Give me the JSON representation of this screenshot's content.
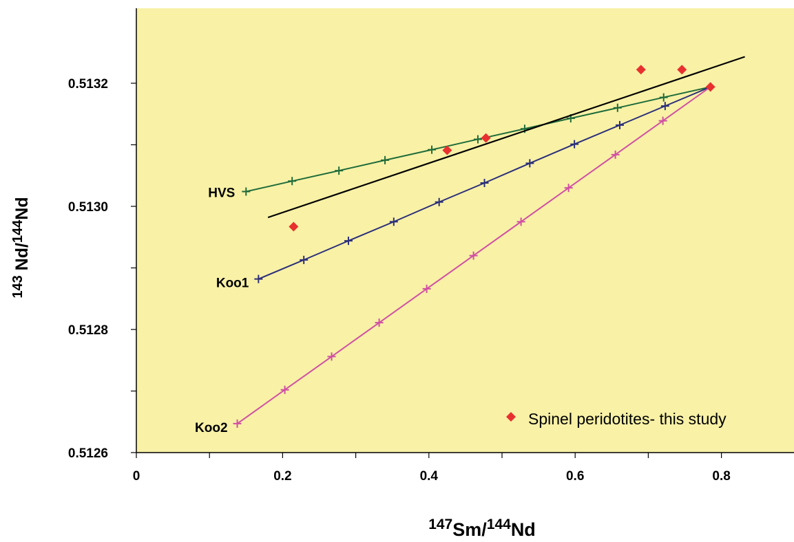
{
  "chart_data": {
    "type": "scatter",
    "xlabel": {
      "sup1": "147",
      "main1": "Sm/",
      "sup2": "144",
      "main2": "Nd"
    },
    "ylabel": {
      "sup1": "143",
      "main1": " Nd/",
      "sup2": "144",
      "main2": "Nd"
    },
    "xlim": [
      0,
      0.9
    ],
    "ylim": [
      0.5126,
      0.5133
    ],
    "x_ticks": [
      0,
      0.1,
      0.2,
      0.3,
      0.4,
      0.5,
      0.6,
      0.7,
      0.8
    ],
    "x_tick_labels": [
      "0",
      "",
      "0.2",
      "",
      "0.4",
      "",
      "0.6",
      "",
      "0.8"
    ],
    "y_ticks": [
      0.5126,
      0.5127,
      0.5128,
      0.5129,
      0.513,
      0.5131,
      0.5132
    ],
    "y_tick_labels": [
      "0.5126",
      "",
      "0.5128",
      "",
      "0.5130",
      "",
      "0.5132"
    ],
    "plot_background": "#f8f1a6",
    "legend": {
      "position": "bottom-right",
      "label": "Spinel peridotites- this study",
      "color": "#e8312f",
      "marker": "diamond"
    },
    "series": [
      {
        "name": "HVS",
        "color": "#1f6b3a",
        "marker": "plus",
        "x": [
          0.15,
          0.213,
          0.277,
          0.34,
          0.404,
          0.467,
          0.531,
          0.594,
          0.658,
          0.721,
          0.785
        ],
        "y": [
          0.513024,
          0.513041,
          0.513058,
          0.513075,
          0.513092,
          0.513109,
          0.513126,
          0.513143,
          0.51316,
          0.513177,
          0.513194
        ]
      },
      {
        "name": "Koo1",
        "color": "#2b2e7a",
        "marker": "plus",
        "x": [
          0.167,
          0.229,
          0.29,
          0.352,
          0.414,
          0.476,
          0.538,
          0.599,
          0.661,
          0.723,
          0.785
        ],
        "y": [
          0.512882,
          0.512913,
          0.512944,
          0.512975,
          0.513007,
          0.513038,
          0.51307,
          0.513101,
          0.513132,
          0.513163,
          0.513194
        ]
      },
      {
        "name": "Koo2",
        "color": "#d14fa4",
        "marker": "plus",
        "x": [
          0.138,
          0.203,
          0.267,
          0.332,
          0.397,
          0.461,
          0.526,
          0.591,
          0.655,
          0.72,
          0.785
        ],
        "y": [
          0.512647,
          0.512702,
          0.512756,
          0.512811,
          0.512866,
          0.51292,
          0.512975,
          0.51303,
          0.513084,
          0.513139,
          0.513194
        ]
      }
    ],
    "regression_line": {
      "color": "#000000",
      "x": [
        0.18,
        0.832
      ],
      "y": [
        0.512982,
        0.513243
      ]
    },
    "points": {
      "name": "Spinel peridotites- this study",
      "x": [
        0.215,
        0.425,
        0.478,
        0.69,
        0.746,
        0.785
      ],
      "y": [
        0.512967,
        0.513091,
        0.513111,
        0.513222,
        0.513222,
        0.513194
      ]
    }
  }
}
